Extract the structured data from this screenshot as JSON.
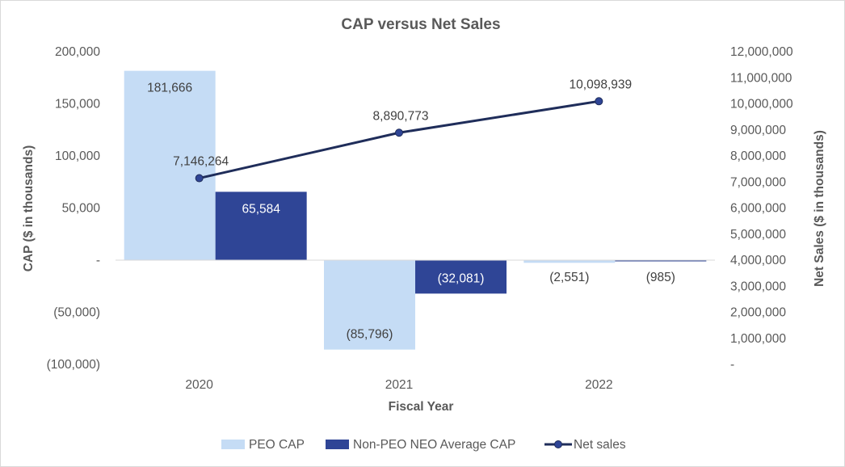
{
  "chart_data": {
    "type": "bar",
    "title": "CAP versus Net Sales",
    "xlabel": "Fiscal Year",
    "ylabel": "CAP ($ in thousands)",
    "y2label": "Net Sales ($ in thousands)",
    "categories": [
      "2020",
      "2021",
      "2022"
    ],
    "ylim": [
      -100000,
      200000
    ],
    "y2lim": [
      0,
      12000000
    ],
    "yticks": [
      -100000,
      -50000,
      0,
      50000,
      100000,
      150000,
      200000
    ],
    "ytick_labels": [
      "(100,000)",
      "(50,000)",
      "-",
      "50,000",
      "100,000",
      "150,000",
      "200,000"
    ],
    "y2ticks": [
      0,
      1000000,
      2000000,
      3000000,
      4000000,
      5000000,
      6000000,
      7000000,
      8000000,
      9000000,
      10000000,
      11000000,
      12000000
    ],
    "y2tick_labels": [
      "-",
      "1,000,000",
      "2,000,000",
      "3,000,000",
      "4,000,000",
      "5,000,000",
      "6,000,000",
      "7,000,000",
      "8,000,000",
      "9,000,000",
      "10,000,000",
      "11,000,000",
      "12,000,000"
    ],
    "series": [
      {
        "name": "PEO CAP",
        "type": "bar",
        "axis": "left",
        "color": "#c5dcf5",
        "values": [
          181666,
          -85796,
          -2551
        ],
        "labels": [
          "181,666",
          "(85,796)",
          "(2,551)"
        ]
      },
      {
        "name": "Non-PEO NEO Average CAP",
        "type": "bar",
        "axis": "left",
        "color": "#2f4596",
        "values": [
          65584,
          -32081,
          -985
        ],
        "labels": [
          "65,584",
          "(32,081)",
          "(985)"
        ]
      },
      {
        "name": "Net sales",
        "type": "line",
        "axis": "right",
        "color": "#1f2d5a",
        "values": [
          7146264,
          8890773,
          10098939
        ],
        "labels": [
          "7,146,264",
          "8,890,773",
          "10,098,939"
        ]
      }
    ],
    "legend": "bottom",
    "grid": false
  }
}
